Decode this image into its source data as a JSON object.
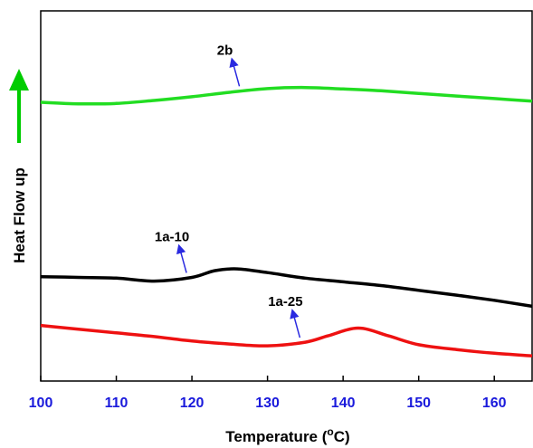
{
  "chart_data": {
    "type": "line",
    "xlabel": "Temperature (°C)",
    "xlabel_main": "Temperature (",
    "xlabel_unit_sup": "o",
    "xlabel_unit_after": "C)",
    "ylabel": "Heat Flow up",
    "xlim": [
      100,
      165
    ],
    "x_ticks": [
      100,
      110,
      120,
      130,
      140,
      150,
      160
    ],
    "y_ticks_shown": false,
    "grid": false,
    "arrow_color": "#00cc00",
    "tick_label_color": "#1a1adc",
    "series": [
      {
        "name": "2b",
        "color": "#22dd22",
        "x": [
          100,
          105,
          110,
          115,
          120,
          125,
          130,
          135,
          140,
          145,
          150,
          155,
          160,
          165
        ],
        "y": [
          0.753,
          0.749,
          0.75,
          0.758,
          0.768,
          0.78,
          0.79,
          0.793,
          0.789,
          0.784,
          0.777,
          0.77,
          0.763,
          0.756
        ]
      },
      {
        "name": "1a-10",
        "color": "#000000",
        "x": [
          100,
          105,
          110,
          115,
          120,
          123,
          126,
          130,
          135,
          140,
          145,
          150,
          155,
          160,
          165
        ],
        "y": [
          0.282,
          0.28,
          0.278,
          0.27,
          0.28,
          0.298,
          0.303,
          0.293,
          0.278,
          0.268,
          0.258,
          0.245,
          0.232,
          0.218,
          0.202
        ]
      },
      {
        "name": "1a-25",
        "color": "#ee1111",
        "x": [
          100,
          105,
          110,
          115,
          120,
          125,
          130,
          135,
          138,
          142,
          146,
          150,
          155,
          160,
          165
        ],
        "y": [
          0.15,
          0.14,
          0.13,
          0.12,
          0.108,
          0.1,
          0.095,
          0.105,
          0.122,
          0.143,
          0.122,
          0.098,
          0.085,
          0.075,
          0.068
        ]
      }
    ],
    "annotations": [
      {
        "text": "2b",
        "series": "2b",
        "x": 127
      },
      {
        "text": "1a-10",
        "series": "1a-10",
        "x": 120
      },
      {
        "text": "1a-25",
        "series": "1a-25",
        "x": 135
      }
    ]
  }
}
